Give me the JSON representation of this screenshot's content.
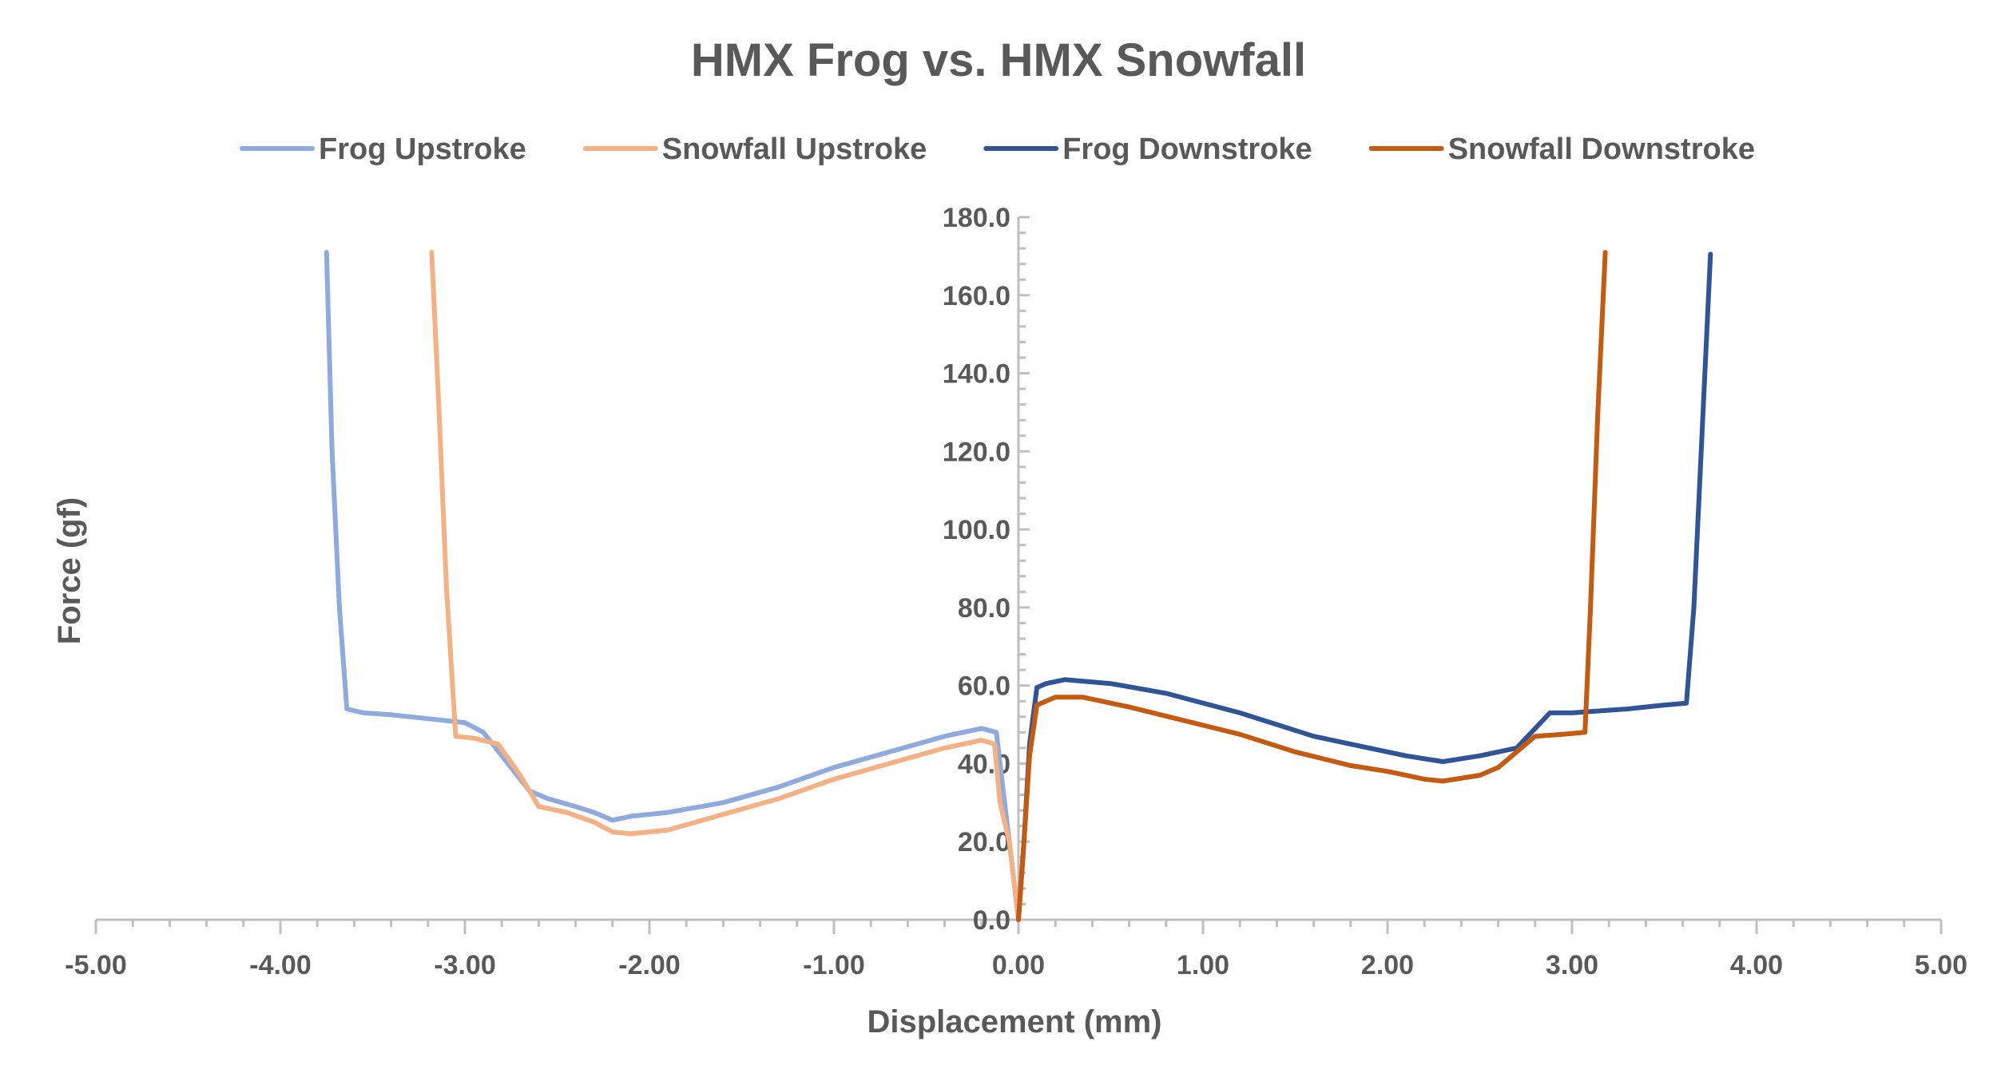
{
  "chart_data": {
    "type": "line",
    "title": "HMX Frog vs. HMX Snowfall",
    "xlabel": "Displacement (mm)",
    "ylabel": "Force (gf)",
    "xlim": [
      -5,
      5
    ],
    "ylim": [
      0,
      180
    ],
    "x_ticks": [
      "-5.00",
      "-4.00",
      "-3.00",
      "-2.00",
      "-1.00",
      "0.00",
      "1.00",
      "2.00",
      "3.00",
      "4.00",
      "5.00"
    ],
    "y_ticks": [
      "0.0",
      "20.0",
      "40.0",
      "60.0",
      "80.0",
      "100.0",
      "120.0",
      "140.0",
      "160.0",
      "180.0"
    ],
    "grid": false,
    "legend_position": "top",
    "series": [
      {
        "name": "Frog Upstroke",
        "color": "#8faadc",
        "points": [
          [
            -3.75,
            171
          ],
          [
            -3.72,
            120
          ],
          [
            -3.68,
            80
          ],
          [
            -3.64,
            54
          ],
          [
            -3.55,
            53
          ],
          [
            -3.4,
            52.5
          ],
          [
            -3.2,
            51.5
          ],
          [
            -3.0,
            50.5
          ],
          [
            -2.9,
            48
          ],
          [
            -2.8,
            42
          ],
          [
            -2.65,
            33
          ],
          [
            -2.55,
            31
          ],
          [
            -2.4,
            29
          ],
          [
            -2.3,
            27.5
          ],
          [
            -2.2,
            25.5
          ],
          [
            -2.1,
            26.5
          ],
          [
            -1.9,
            27.5
          ],
          [
            -1.6,
            30
          ],
          [
            -1.3,
            34
          ],
          [
            -1.0,
            39
          ],
          [
            -0.7,
            43
          ],
          [
            -0.4,
            47
          ],
          [
            -0.2,
            49
          ],
          [
            -0.12,
            48
          ],
          [
            -0.1,
            40
          ],
          [
            -0.05,
            20
          ],
          [
            -0.02,
            8
          ],
          [
            0.0,
            0
          ]
        ]
      },
      {
        "name": "Snowfall Upstroke",
        "color": "#f4b183",
        "points": [
          [
            -3.18,
            171
          ],
          [
            -3.14,
            130
          ],
          [
            -3.1,
            85
          ],
          [
            -3.05,
            47
          ],
          [
            -2.95,
            46.5
          ],
          [
            -2.82,
            45
          ],
          [
            -2.7,
            37
          ],
          [
            -2.6,
            29
          ],
          [
            -2.45,
            27.5
          ],
          [
            -2.3,
            25
          ],
          [
            -2.2,
            22.5
          ],
          [
            -2.1,
            22
          ],
          [
            -1.9,
            23
          ],
          [
            -1.6,
            27
          ],
          [
            -1.3,
            31
          ],
          [
            -1.0,
            36
          ],
          [
            -0.7,
            40
          ],
          [
            -0.4,
            44
          ],
          [
            -0.2,
            46
          ],
          [
            -0.13,
            45
          ],
          [
            -0.1,
            30
          ],
          [
            -0.05,
            20
          ],
          [
            -0.02,
            8
          ],
          [
            0.0,
            0
          ]
        ]
      },
      {
        "name": "Frog Downstroke",
        "color": "#2f5597",
        "points": [
          [
            0.0,
            0
          ],
          [
            0.03,
            20
          ],
          [
            0.06,
            45
          ],
          [
            0.1,
            59.5
          ],
          [
            0.15,
            60.5
          ],
          [
            0.25,
            61.5
          ],
          [
            0.5,
            60.5
          ],
          [
            0.8,
            58
          ],
          [
            1.2,
            53
          ],
          [
            1.6,
            47
          ],
          [
            1.9,
            44
          ],
          [
            2.1,
            42
          ],
          [
            2.3,
            40.5
          ],
          [
            2.5,
            42
          ],
          [
            2.7,
            44
          ],
          [
            2.8,
            49
          ],
          [
            2.88,
            53
          ],
          [
            3.0,
            53
          ],
          [
            3.3,
            54
          ],
          [
            3.5,
            55
          ],
          [
            3.62,
            55.5
          ],
          [
            3.66,
            80
          ],
          [
            3.7,
            120
          ],
          [
            3.75,
            170.5
          ]
        ]
      },
      {
        "name": "Snowfall Downstroke",
        "color": "#c55a11",
        "points": [
          [
            0.0,
            0
          ],
          [
            0.03,
            20
          ],
          [
            0.06,
            42
          ],
          [
            0.1,
            55
          ],
          [
            0.2,
            57
          ],
          [
            0.35,
            57
          ],
          [
            0.6,
            54.5
          ],
          [
            0.9,
            51
          ],
          [
            1.2,
            47.5
          ],
          [
            1.5,
            43
          ],
          [
            1.8,
            39.5
          ],
          [
            2.0,
            38
          ],
          [
            2.2,
            36
          ],
          [
            2.3,
            35.5
          ],
          [
            2.5,
            37
          ],
          [
            2.6,
            39
          ],
          [
            2.7,
            43
          ],
          [
            2.8,
            47
          ],
          [
            2.95,
            47.5
          ],
          [
            3.07,
            48
          ],
          [
            3.1,
            80
          ],
          [
            3.14,
            130
          ],
          [
            3.18,
            171
          ]
        ]
      }
    ]
  }
}
